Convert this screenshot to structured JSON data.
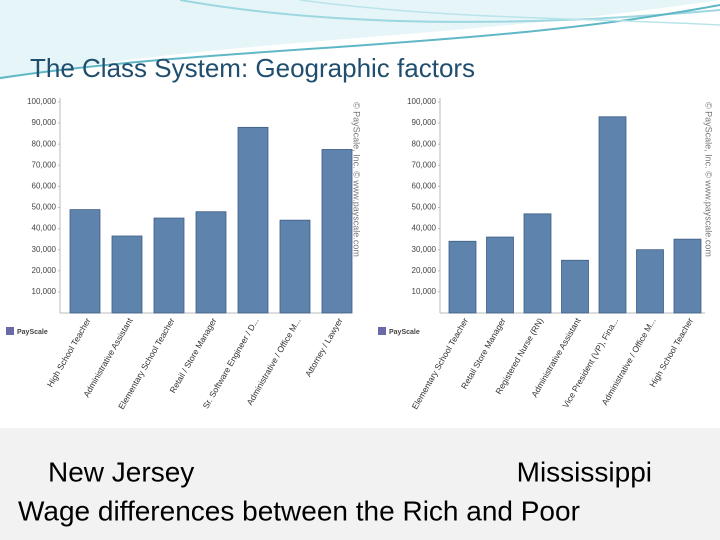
{
  "title": "The Class System: Geographic factors",
  "captions": [
    "New Jersey",
    "Mississippi",
    "Wage differences between the Rich and Poor"
  ],
  "chart_data": [
    {
      "type": "bar",
      "categories": [
        "High School Teacher",
        "Administrative Assistant",
        "Elementary School Teacher",
        "Retail / Store Manager",
        "Sr. Software Engineer / D...",
        "Administrative / Office M...",
        "Attorney / Lawyer"
      ],
      "values": [
        49000,
        36500,
        45000,
        48000,
        88000,
        44000,
        77500
      ],
      "color": "#5e83ac",
      "ylim": [
        0,
        100000
      ],
      "yticks": [
        {
          "value": 10000,
          "label": "10,000"
        },
        {
          "value": 20000,
          "label": "20,000"
        },
        {
          "value": 30000,
          "label": "30,000"
        },
        {
          "value": 40000,
          "label": "40,000"
        },
        {
          "value": 50000,
          "label": "50,000"
        },
        {
          "value": 60000,
          "label": "60,000"
        },
        {
          "value": 70000,
          "label": "70,000"
        },
        {
          "value": 80000,
          "label": "80,000"
        },
        {
          "value": 90000,
          "label": "90,000"
        },
        {
          "value": 100000,
          "label": "100,000"
        }
      ],
      "watermark": "© PayScale, Inc. © www.payscale.com",
      "logo": "PayScale"
    },
    {
      "type": "bar",
      "categories": [
        "Elementary School Teacher",
        "Retail Store Manager",
        "Registered Nurse (RN)",
        "Administrative Assistant",
        "Vice President (VP), Fina...",
        "Administrative / Office M...",
        "High School Teacher"
      ],
      "values": [
        34000,
        36000,
        47000,
        25000,
        93000,
        30000,
        35000
      ],
      "color": "#5e83ac",
      "ylim": [
        0,
        100000
      ],
      "yticks": [
        {
          "value": 10000,
          "label": "10,000"
        },
        {
          "value": 20000,
          "label": "20,000"
        },
        {
          "value": 30000,
          "label": "30,000"
        },
        {
          "value": 40000,
          "label": "40,000"
        },
        {
          "value": 50000,
          "label": "50,000"
        },
        {
          "value": 60000,
          "label": "60,000"
        },
        {
          "value": 70000,
          "label": "70,000"
        },
        {
          "value": 80000,
          "label": "80,000"
        },
        {
          "value": 90000,
          "label": "90,000"
        },
        {
          "value": 100000,
          "label": "100,000"
        }
      ],
      "watermark": "© PayScale, Inc. © www.payscale.com",
      "logo": "PayScale"
    }
  ]
}
